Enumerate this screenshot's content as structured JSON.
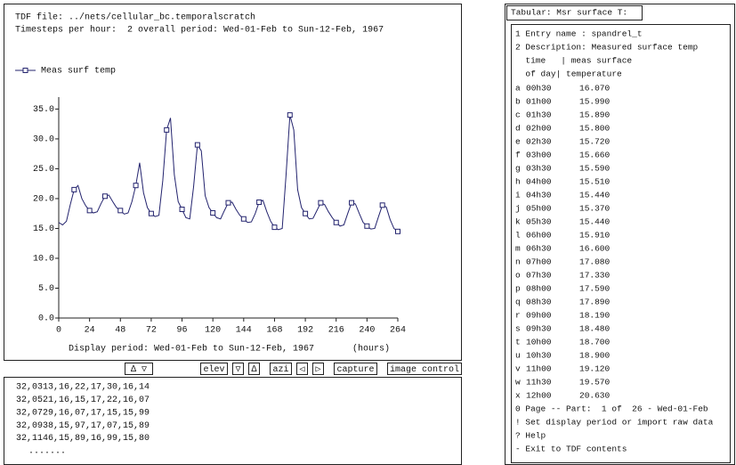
{
  "header": {
    "file": "TDF file: ../nets/cellular_bc.temporalscratch",
    "timesteps": "Timesteps per hour:  2 overall period: Wed-01-Feb to Sun-12-Feb, 1967"
  },
  "chart_data": {
    "type": "line",
    "x": [
      0,
      3,
      6,
      9,
      12,
      15,
      18,
      21,
      24,
      27,
      30,
      33,
      36,
      39,
      42,
      45,
      48,
      51,
      54,
      57,
      60,
      63,
      66,
      69,
      72,
      75,
      78,
      81,
      84,
      87,
      90,
      93,
      96,
      99,
      102,
      105,
      108,
      111,
      114,
      117,
      120,
      123,
      126,
      129,
      132,
      135,
      138,
      141,
      144,
      147,
      150,
      153,
      156,
      159,
      162,
      165,
      168,
      171,
      174,
      177,
      180,
      183,
      186,
      189,
      192,
      195,
      198,
      201,
      204,
      207,
      210,
      213,
      216,
      219,
      222,
      225,
      228,
      231,
      234,
      237,
      240,
      243,
      246,
      249,
      252,
      255,
      258,
      261,
      264
    ],
    "series": [
      {
        "name": "Meas surf temp",
        "color": "#23236e",
        "values": [
          16.0,
          15.6,
          16.2,
          19.0,
          21.5,
          22.2,
          20.0,
          18.8,
          18.0,
          17.6,
          17.8,
          19.2,
          20.4,
          20.6,
          19.5,
          18.5,
          18.0,
          17.4,
          17.6,
          19.5,
          22.2,
          26.0,
          21.0,
          18.5,
          17.5,
          17.0,
          17.2,
          23.0,
          31.5,
          33.5,
          24.0,
          19.5,
          18.2,
          16.8,
          16.6,
          22.0,
          29.0,
          28.0,
          20.5,
          18.5,
          17.6,
          16.8,
          16.6,
          18.0,
          19.3,
          19.4,
          18.2,
          17.2,
          16.6,
          16.0,
          16.1,
          17.5,
          19.4,
          19.7,
          17.8,
          16.2,
          15.2,
          14.8,
          15.0,
          24.0,
          34.0,
          31.5,
          21.5,
          18.5,
          17.5,
          16.6,
          16.7,
          18.0,
          19.3,
          19.0,
          17.8,
          16.8,
          16.0,
          15.4,
          15.6,
          17.5,
          19.3,
          19.1,
          17.5,
          16.0,
          15.4,
          14.9,
          15.0,
          17.0,
          18.9,
          18.6,
          16.5,
          15.0,
          14.5
        ]
      }
    ],
    "xlim": [
      0,
      264
    ],
    "xticks": [
      0,
      24,
      48,
      72,
      96,
      120,
      144,
      168,
      192,
      216,
      240,
      264
    ],
    "ylim": [
      0,
      37
    ],
    "yticks": [
      {
        "value": 0,
        "label": "0.0"
      },
      {
        "value": 5,
        "label": "5.0"
      },
      {
        "value": 10,
        "label": "10.0"
      },
      {
        "value": 15,
        "label": "15.0"
      },
      {
        "value": 20,
        "label": "20.0"
      },
      {
        "value": 25,
        "label": "25.0"
      },
      {
        "value": 30,
        "label": "30.0"
      },
      {
        "value": 35,
        "label": "35.0"
      }
    ],
    "xlabel": "Display period: Wed-01-Feb to Sun-12-Feb, 1967",
    "xlabel_unit": "(hours)",
    "legend": "top-left"
  },
  "toolbar": [
    "∆ ▽",
    "elev",
    "▽",
    "∆",
    "azi",
    "◁",
    "▷",
    "capture",
    "image control"
  ],
  "console": [
    "32,0313,16,22,17,30,16,14",
    "32,0521,16,15,17,22,16,07",
    "32,0729,16,07,17,15,15,99",
    "32,0938,15,97,17,07,15,89",
    "32,1146,15,89,16,99,15,80",
    "......."
  ],
  "tabular": {
    "title": "Tabular: Msr surface T:",
    "intro": [
      "1 Entry name : spandrel_t",
      "2 Description: Measured surface temp",
      "  time   | meas surface",
      "  of day| temperature"
    ],
    "rows": [
      [
        "a",
        "00h30",
        "16.070"
      ],
      [
        "b",
        "01h00",
        "15.990"
      ],
      [
        "c",
        "01h30",
        "15.890"
      ],
      [
        "d",
        "02h00",
        "15.800"
      ],
      [
        "e",
        "02h30",
        "15.720"
      ],
      [
        "f",
        "03h00",
        "15.660"
      ],
      [
        "g",
        "03h30",
        "15.590"
      ],
      [
        "h",
        "04h00",
        "15.510"
      ],
      [
        "i",
        "04h30",
        "15.440"
      ],
      [
        "j",
        "05h00",
        "15.370"
      ],
      [
        "k",
        "05h30",
        "15.440"
      ],
      [
        "l",
        "06h00",
        "15.910"
      ],
      [
        "m",
        "06h30",
        "16.600"
      ],
      [
        "n",
        "07h00",
        "17.080"
      ],
      [
        "o",
        "07h30",
        "17.330"
      ],
      [
        "p",
        "08h00",
        "17.590"
      ],
      [
        "q",
        "08h30",
        "17.890"
      ],
      [
        "r",
        "09h00",
        "18.190"
      ],
      [
        "s",
        "09h30",
        "18.480"
      ],
      [
        "t",
        "10h00",
        "18.700"
      ],
      [
        "u",
        "10h30",
        "18.900"
      ],
      [
        "v",
        "11h00",
        "19.120"
      ],
      [
        "w",
        "11h30",
        "19.570"
      ],
      [
        "x",
        "12h00",
        "20.630"
      ]
    ],
    "footer": [
      "0 Page -- Part:  1 of  26 - Wed-01-Feb",
      "! Set display period or import raw data",
      "? Help",
      "- Exit to TDF contents"
    ]
  }
}
